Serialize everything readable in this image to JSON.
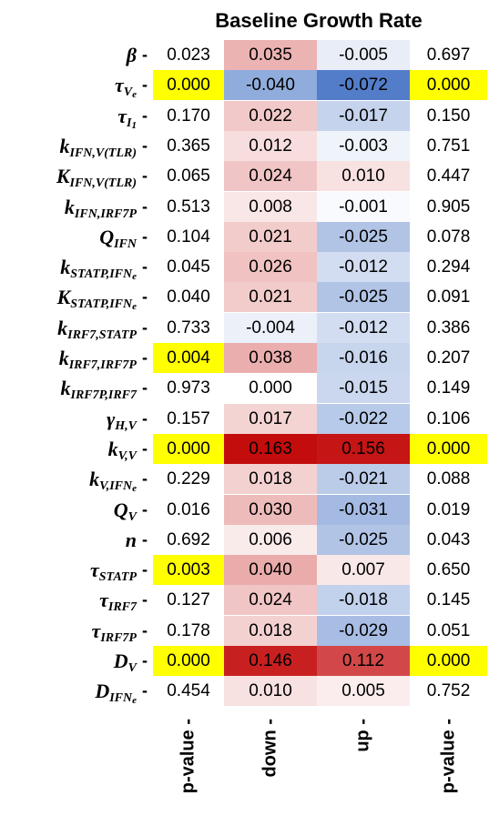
{
  "chart_data": {
    "type": "heatmap",
    "title": "Baseline Growth Rate",
    "columns": [
      "p-value",
      "down",
      "up",
      "p-value"
    ],
    "rows": [
      {
        "label": "β",
        "values": [
          "0.023",
          "0.035",
          "-0.005",
          "0.697"
        ]
      },
      {
        "label": "τ_Ve",
        "values": [
          "0.000",
          "-0.040",
          "-0.072",
          "0.000"
        ]
      },
      {
        "label": "τ_I1",
        "values": [
          "0.170",
          "0.022",
          "-0.017",
          "0.150"
        ]
      },
      {
        "label": "k_IFN,V(TLR)",
        "values": [
          "0.365",
          "0.012",
          "-0.003",
          "0.751"
        ]
      },
      {
        "label": "K_IFN,V(TLR)",
        "values": [
          "0.065",
          "0.024",
          "0.010",
          "0.447"
        ]
      },
      {
        "label": "k_IFN,IRF7P",
        "values": [
          "0.513",
          "0.008",
          "-0.001",
          "0.905"
        ]
      },
      {
        "label": "Q_IFN",
        "values": [
          "0.104",
          "0.021",
          "-0.025",
          "0.078"
        ]
      },
      {
        "label": "k_STATP,IFNe",
        "values": [
          "0.045",
          "0.026",
          "-0.012",
          "0.294"
        ]
      },
      {
        "label": "K_STATP,IFNe",
        "values": [
          "0.040",
          "0.021",
          "-0.025",
          "0.091"
        ]
      },
      {
        "label": "k_IRF7,STATP",
        "values": [
          "0.733",
          "-0.004",
          "-0.012",
          "0.386"
        ]
      },
      {
        "label": "k_IRF7,IRF7P",
        "values": [
          "0.004",
          "0.038",
          "-0.016",
          "0.207"
        ]
      },
      {
        "label": "k_IRF7P,IRF7",
        "values": [
          "0.973",
          "0.000",
          "-0.015",
          "0.149"
        ]
      },
      {
        "label": "γ_H,V",
        "values": [
          "0.157",
          "0.017",
          "-0.022",
          "0.106"
        ]
      },
      {
        "label": "k_V,V",
        "values": [
          "0.000",
          "0.163",
          "0.156",
          "0.000"
        ]
      },
      {
        "label": "k_V,IFNe",
        "values": [
          "0.229",
          "0.018",
          "-0.021",
          "0.088"
        ]
      },
      {
        "label": "Q_V",
        "values": [
          "0.016",
          "0.030",
          "-0.031",
          "0.019"
        ]
      },
      {
        "label": "n",
        "values": [
          "0.692",
          "0.006",
          "-0.025",
          "0.043"
        ]
      },
      {
        "label": "τ_STATP",
        "values": [
          "0.003",
          "0.040",
          "0.007",
          "0.650"
        ]
      },
      {
        "label": "τ_IRF7",
        "values": [
          "0.127",
          "0.024",
          "-0.018",
          "0.145"
        ]
      },
      {
        "label": "τ_IRF7P",
        "values": [
          "0.178",
          "0.018",
          "-0.029",
          "0.051"
        ]
      },
      {
        "label": "D_V",
        "values": [
          "0.000",
          "0.146",
          "0.112",
          "0.000"
        ]
      },
      {
        "label": "D_IFNe",
        "values": [
          "0.454",
          "0.010",
          "0.005",
          "0.752"
        ]
      }
    ],
    "highlight_threshold": 0.005,
    "colors": {
      "highlight": "#ffff00",
      "positive": "#c00000",
      "negative": "#4472c4",
      "neutral": "#ffffff"
    }
  }
}
